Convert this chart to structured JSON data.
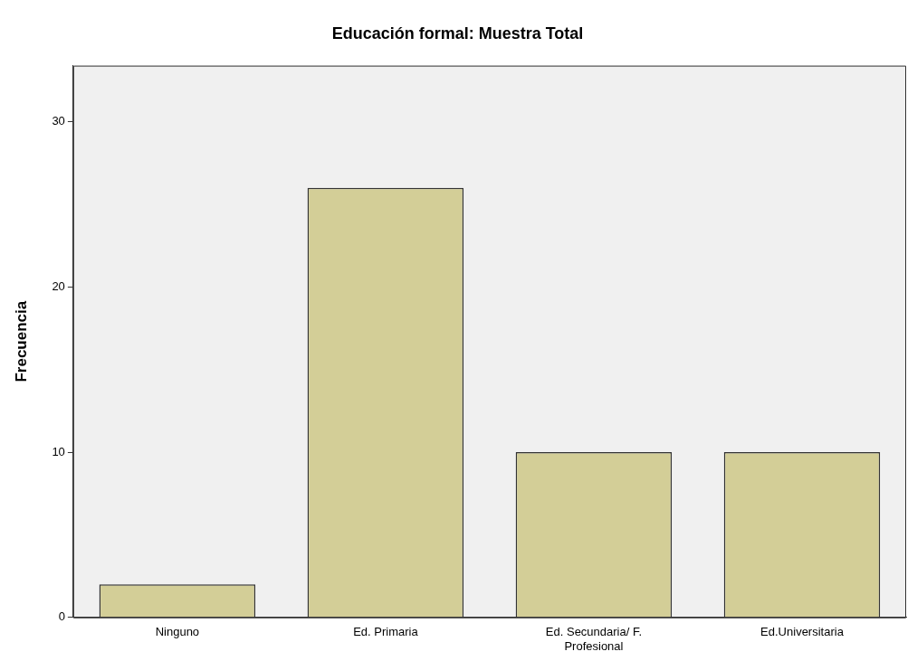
{
  "chart_data": {
    "type": "bar",
    "title": "Educación formal: Muestra Total",
    "ylabel": "Frecuencia",
    "categories": [
      "Ninguno",
      "Ed. Primaria",
      "Ed. Secundaria/ F. Profesional",
      "Ed.Universitaria"
    ],
    "values": [
      2,
      26,
      10,
      10
    ],
    "color": "#d3ce97",
    "ylim": [
      0,
      33.4
    ],
    "yticks": [
      0,
      10,
      20,
      30
    ],
    "grid": false,
    "legend": false
  }
}
